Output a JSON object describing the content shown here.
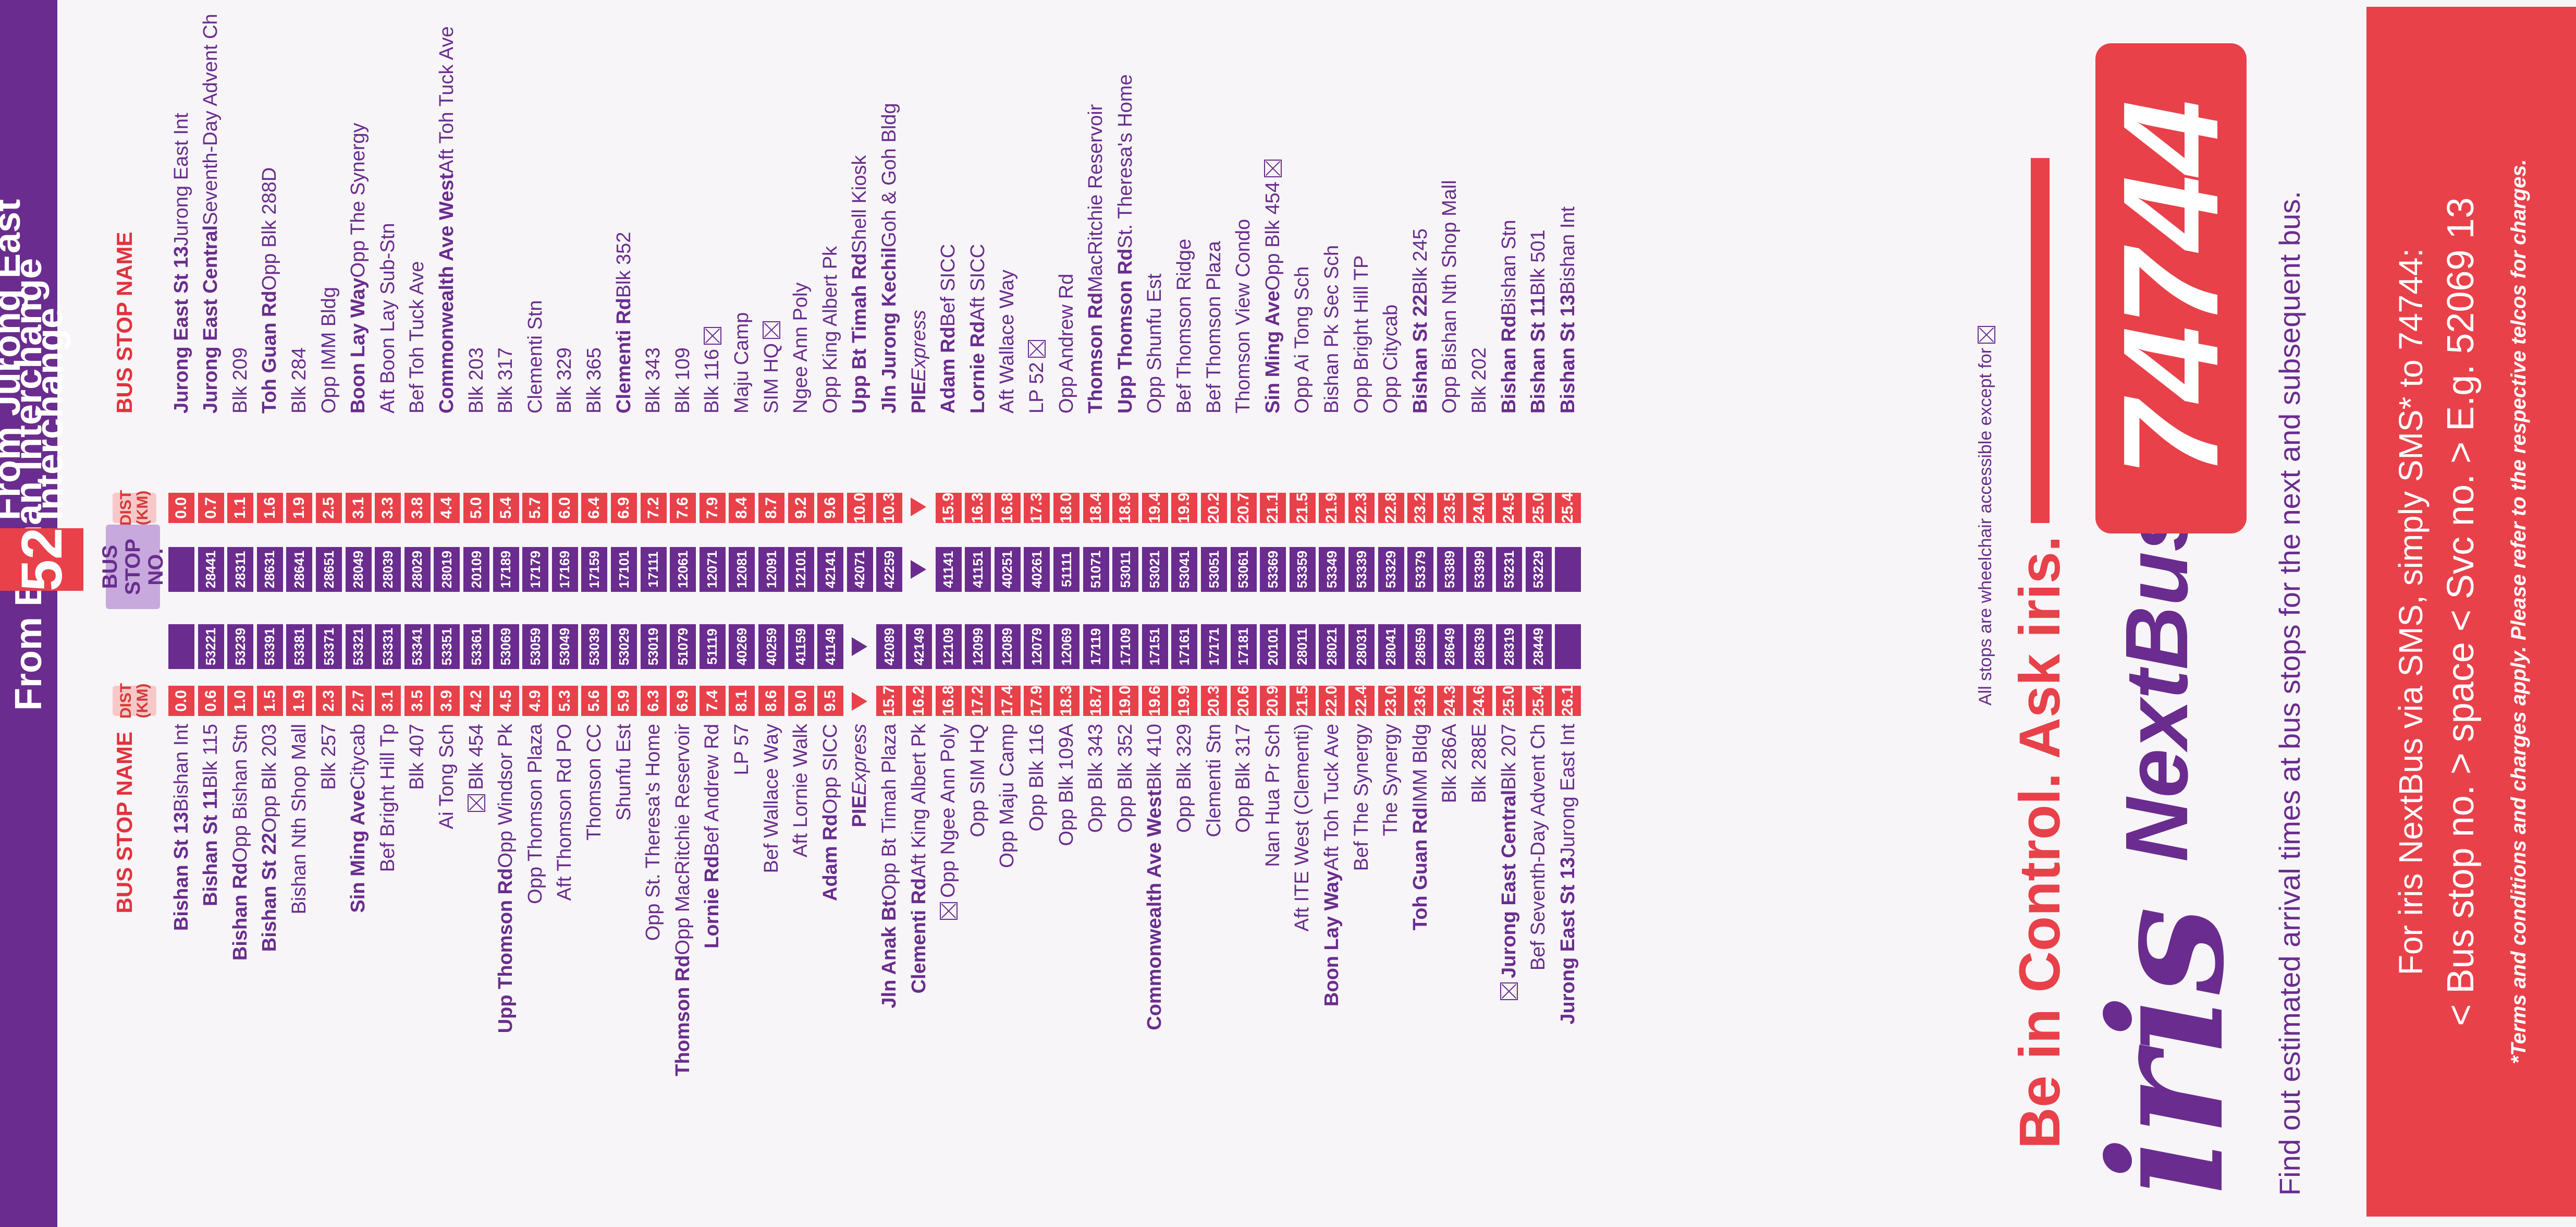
{
  "route": {
    "service_no": "52",
    "from_bishan_title": "From Bishan Interchange",
    "from_jurong_title": "From Jurong East Interchange"
  },
  "headers": {
    "bus_stop_name": "BUS STOP NAME",
    "dist": "DIST (KM)",
    "bus_stop_no": "BUS STOP NO."
  },
  "from_bishan": [
    {
      "bold": "Bishan St 13",
      "rest": " Bishan Int",
      "dist": "0.0",
      "stop": ""
    },
    {
      "bold": "Bishan St 11",
      "rest": " Blk 115",
      "dist": "0.6",
      "stop": "53221"
    },
    {
      "bold": "Bishan Rd",
      "rest": " Opp Bishan Stn",
      "dist": "1.0",
      "stop": "53239"
    },
    {
      "bold": "Bishan St 22",
      "rest": " Opp Blk 203",
      "dist": "1.5",
      "stop": "53391"
    },
    {
      "bold": "",
      "rest": "Bishan Nth Shop Mall",
      "dist": "1.9",
      "stop": "53381"
    },
    {
      "bold": "",
      "rest": "Blk 257",
      "dist": "2.3",
      "stop": "53371"
    },
    {
      "bold": "Sin Ming Ave",
      "rest": " Citycab",
      "dist": "2.7",
      "stop": "53321"
    },
    {
      "bold": "",
      "rest": "Bef Bright Hill Tp",
      "dist": "3.1",
      "stop": "53331"
    },
    {
      "bold": "",
      "rest": "Blk 407",
      "dist": "3.5",
      "stop": "53341"
    },
    {
      "bold": "",
      "rest": "Ai Tong Sch",
      "dist": "3.9",
      "stop": "53351"
    },
    {
      "bold": "",
      "rest": "Blk 454",
      "dist": "4.2",
      "stop": "53361",
      "x": true
    },
    {
      "bold": "Upp Thomson Rd",
      "rest": " Opp Windsor Pk",
      "dist": "4.5",
      "stop": "53069"
    },
    {
      "bold": "",
      "rest": "Opp Thomson Plaza",
      "dist": "4.9",
      "stop": "53059"
    },
    {
      "bold": "",
      "rest": "Aft Thomson Rd PO",
      "dist": "5.3",
      "stop": "53049"
    },
    {
      "bold": "",
      "rest": "Thomson CC",
      "dist": "5.6",
      "stop": "53039"
    },
    {
      "bold": "",
      "rest": "Shunfu Est",
      "dist": "5.9",
      "stop": "53029"
    },
    {
      "bold": "",
      "rest": "Opp St. Theresa's Home",
      "dist": "6.3",
      "stop": "53019"
    },
    {
      "bold": "Thomson Rd",
      "rest": " Opp MacRitchie Reservoir",
      "dist": "6.9",
      "stop": "51079"
    },
    {
      "bold": "Lornie Rd",
      "rest": " Bef Andrew Rd",
      "dist": "7.4",
      "stop": "51119"
    },
    {
      "bold": "",
      "rest": "LP 57",
      "dist": "8.1",
      "stop": "40269"
    },
    {
      "bold": "",
      "rest": "Bef Wallace Way",
      "dist": "8.6",
      "stop": "40259"
    },
    {
      "bold": "",
      "rest": "Aft Lornie Walk",
      "dist": "9.0",
      "stop": "41159"
    },
    {
      "bold": "Adam Rd",
      "rest": " Opp SICC",
      "dist": "9.5",
      "stop": "41149"
    },
    {
      "bold": "PIE",
      "rest": " Express",
      "dist": "",
      "stop": "",
      "arrow": true
    },
    {
      "bold": "Jln Anak Bt",
      "rest": " Opp Bt Timah Plaza",
      "dist": "15.7",
      "stop": "42089"
    },
    {
      "bold": "Clementi Rd",
      "rest": " Aft King Albert Pk",
      "dist": "16.2",
      "stop": "42149"
    },
    {
      "bold": "",
      "rest": "Opp Ngee Ann Poly",
      "dist": "16.8",
      "stop": "12109",
      "x": true
    },
    {
      "bold": "",
      "rest": "Opp SIM HQ",
      "dist": "17.2",
      "stop": "12099"
    },
    {
      "bold": "",
      "rest": "Opp Maju Camp",
      "dist": "17.4",
      "stop": "12089"
    },
    {
      "bold": "",
      "rest": "Opp Blk 116",
      "dist": "17.9",
      "stop": "12079"
    },
    {
      "bold": "",
      "rest": "Opp Blk 109A",
      "dist": "18.3",
      "stop": "12069"
    },
    {
      "bold": "",
      "rest": "Opp Blk 343",
      "dist": "18.7",
      "stop": "17119"
    },
    {
      "bold": "",
      "rest": "Opp Blk 352",
      "dist": "19.0",
      "stop": "17109"
    },
    {
      "bold": "Commonwealth Ave West",
      "rest": " Blk 410",
      "dist": "19.6",
      "stop": "17151"
    },
    {
      "bold": "",
      "rest": "Opp Blk 329",
      "dist": "19.9",
      "stop": "17161"
    },
    {
      "bold": "",
      "rest": "Clementi Stn",
      "dist": "20.3",
      "stop": "17171"
    },
    {
      "bold": "",
      "rest": "Opp Blk 317",
      "dist": "20.6",
      "stop": "17181"
    },
    {
      "bold": "",
      "rest": "Nan Hua Pr Sch",
      "dist": "20.9",
      "stop": "20101"
    },
    {
      "bold": "",
      "rest": "Aft ITE West (Clementi)",
      "dist": "21.5",
      "stop": "28011"
    },
    {
      "bold": "Boon Lay Way",
      "rest": " Aft Toh Tuck Ave",
      "dist": "22.0",
      "stop": "28021"
    },
    {
      "bold": "",
      "rest": "Bef The Synergy",
      "dist": "22.4",
      "stop": "28031"
    },
    {
      "bold": "",
      "rest": "The Synergy",
      "dist": "23.0",
      "stop": "28041"
    },
    {
      "bold": "Toh Guan Rd",
      "rest": " IMM Bldg",
      "dist": "23.6",
      "stop": "28659"
    },
    {
      "bold": "",
      "rest": "Blk 286A",
      "dist": "24.3",
      "stop": "28649"
    },
    {
      "bold": "",
      "rest": "Blk 288E",
      "dist": "24.6",
      "stop": "28639"
    },
    {
      "bold": "Jurong East Central",
      "rest": " Blk 207",
      "dist": "25.0",
      "stop": "28319",
      "x": true
    },
    {
      "bold": "",
      "rest": "Bef Seventh-Day Advent Ch",
      "dist": "25.4",
      "stop": "28449"
    },
    {
      "bold": "Jurong East St 13",
      "rest": " Jurong East Int",
      "dist": "26.1",
      "stop": ""
    }
  ],
  "from_jurong": [
    {
      "bold": "Jurong East St 13",
      "rest": " Jurong East Int",
      "dist": "0.0",
      "stop": ""
    },
    {
      "bold": "Jurong East Central",
      "rest": " Seventh-Day Advent Ch",
      "dist": "0.7",
      "stop": "28441"
    },
    {
      "bold": "",
      "rest": "Blk 209",
      "dist": "1.1",
      "stop": "28311"
    },
    {
      "bold": "Toh Guan Rd",
      "rest": " Opp Blk 288D",
      "dist": "1.6",
      "stop": "28631"
    },
    {
      "bold": "",
      "rest": "Blk 284",
      "dist": "1.9",
      "stop": "28641"
    },
    {
      "bold": "",
      "rest": "Opp IMM Bldg",
      "dist": "2.5",
      "stop": "28651"
    },
    {
      "bold": "Boon Lay Way",
      "rest": " Opp The Synergy",
      "dist": "3.1",
      "stop": "28049"
    },
    {
      "bold": "",
      "rest": "Aft Boon Lay Sub-Stn",
      "dist": "3.3",
      "stop": "28039"
    },
    {
      "bold": "",
      "rest": "Bef Toh Tuck Ave",
      "dist": "3.8",
      "stop": "28029"
    },
    {
      "bold": "Commonwealth Ave West",
      "rest": " Aft Toh Tuck Ave",
      "dist": "4.4",
      "stop": "28019"
    },
    {
      "bold": "",
      "rest": "Blk 203",
      "dist": "5.0",
      "stop": "20109"
    },
    {
      "bold": "",
      "rest": "Blk 317",
      "dist": "5.4",
      "stop": "17189"
    },
    {
      "bold": "",
      "rest": "Clementi Stn",
      "dist": "5.7",
      "stop": "17179"
    },
    {
      "bold": "",
      "rest": "Blk 329",
      "dist": "6.0",
      "stop": "17169"
    },
    {
      "bold": "",
      "rest": "Blk 365",
      "dist": "6.4",
      "stop": "17159"
    },
    {
      "bold": "Clementi Rd",
      "rest": " Blk 352",
      "dist": "6.9",
      "stop": "17101"
    },
    {
      "bold": "",
      "rest": "Blk 343",
      "dist": "7.2",
      "stop": "17111"
    },
    {
      "bold": "",
      "rest": "Blk 109",
      "dist": "7.6",
      "stop": "12061"
    },
    {
      "bold": "",
      "rest": "Blk 116",
      "dist": "7.9",
      "stop": "12071",
      "x": true
    },
    {
      "bold": "",
      "rest": "Maju Camp",
      "dist": "8.4",
      "stop": "12081"
    },
    {
      "bold": "",
      "rest": "SIM HQ",
      "dist": "8.7",
      "stop": "12091",
      "x": true
    },
    {
      "bold": "",
      "rest": "Ngee Ann Poly",
      "dist": "9.2",
      "stop": "12101"
    },
    {
      "bold": "",
      "rest": "Opp King Albert Pk",
      "dist": "9.6",
      "stop": "42141"
    },
    {
      "bold": "Upp Bt Timah Rd",
      "rest": " Shell Kiosk",
      "dist": "10.0",
      "stop": "42071"
    },
    {
      "bold": "Jln Jurong Kechil",
      "rest": " Goh & Goh Bldg",
      "dist": "10.3",
      "stop": "42259"
    },
    {
      "bold": "PIE",
      "rest": " Express",
      "dist": "",
      "stop": "",
      "arrow": true
    },
    {
      "bold": "Adam Rd",
      "rest": " Bef SICC",
      "dist": "15.9",
      "stop": "41141"
    },
    {
      "bold": "Lornie Rd",
      "rest": " Aft SICC",
      "dist": "16.3",
      "stop": "41151"
    },
    {
      "bold": "",
      "rest": "Aft Wallace Way",
      "dist": "16.8",
      "stop": "40251"
    },
    {
      "bold": "",
      "rest": "LP 52",
      "dist": "17.3",
      "stop": "40261",
      "x": true
    },
    {
      "bold": "",
      "rest": "Opp Andrew Rd",
      "dist": "18.0",
      "stop": "51111"
    },
    {
      "bold": "Thomson Rd",
      "rest": " MacRitchie Reservoir",
      "dist": "18.4",
      "stop": "51071"
    },
    {
      "bold": "Upp Thomson Rd",
      "rest": " St. Theresa's Home",
      "dist": "18.9",
      "stop": "53011"
    },
    {
      "bold": "",
      "rest": "Opp Shunfu Est",
      "dist": "19.4",
      "stop": "53021"
    },
    {
      "bold": "",
      "rest": "Bef Thomson Ridge",
      "dist": "19.9",
      "stop": "53041"
    },
    {
      "bold": "",
      "rest": "Bef Thomson Plaza",
      "dist": "20.2",
      "stop": "53051"
    },
    {
      "bold": "",
      "rest": "Thomson View Condo",
      "dist": "20.7",
      "stop": "53061"
    },
    {
      "bold": "Sin Ming Ave",
      "rest": " Opp Blk 454",
      "dist": "21.1",
      "stop": "53369",
      "x": true
    },
    {
      "bold": "",
      "rest": "Opp Ai Tong Sch",
      "dist": "21.5",
      "stop": "53359"
    },
    {
      "bold": "",
      "rest": "Bishan Pk Sec Sch",
      "dist": "21.9",
      "stop": "53349"
    },
    {
      "bold": "",
      "rest": "Opp Bright Hill TP",
      "dist": "22.3",
      "stop": "53339"
    },
    {
      "bold": "",
      "rest": "Opp Citycab",
      "dist": "22.8",
      "stop": "53329"
    },
    {
      "bold": "Bishan St 22",
      "rest": " Blk 245",
      "dist": "23.2",
      "stop": "53379"
    },
    {
      "bold": "",
      "rest": "Opp Bishan Nth Shop Mall",
      "dist": "23.5",
      "stop": "53389"
    },
    {
      "bold": "",
      "rest": "Blk 202",
      "dist": "24.0",
      "stop": "53399"
    },
    {
      "bold": "Bishan Rd",
      "rest": " Bishan Stn",
      "dist": "24.5",
      "stop": "53231"
    },
    {
      "bold": "Bishan St 11",
      "rest": " Blk 501",
      "dist": "25.0",
      "stop": "53229"
    },
    {
      "bold": "Bishan St 13",
      "rest": " Bishan Int",
      "dist": "25.4",
      "stop": ""
    }
  ],
  "notes": {
    "accessibility": "All stops are wheelchair accessible except for"
  },
  "promo": {
    "headline": "Be in Control. Ask iris.",
    "logo_iris": "iris",
    "logo_nextbus": "NextBus",
    "sms_number": "74744",
    "description": "Find out estimated arrival times at bus stops for the next and subsequent bus."
  },
  "sms": {
    "line1": "For iris NextBus via SMS, simply SMS* to 74744:",
    "line2": "< Bus stop no. > space < Svc no. > E.g. 52069 13",
    "terms": "*Terms and conditions and charges apply. Please refer to the respective telcos for charges."
  }
}
